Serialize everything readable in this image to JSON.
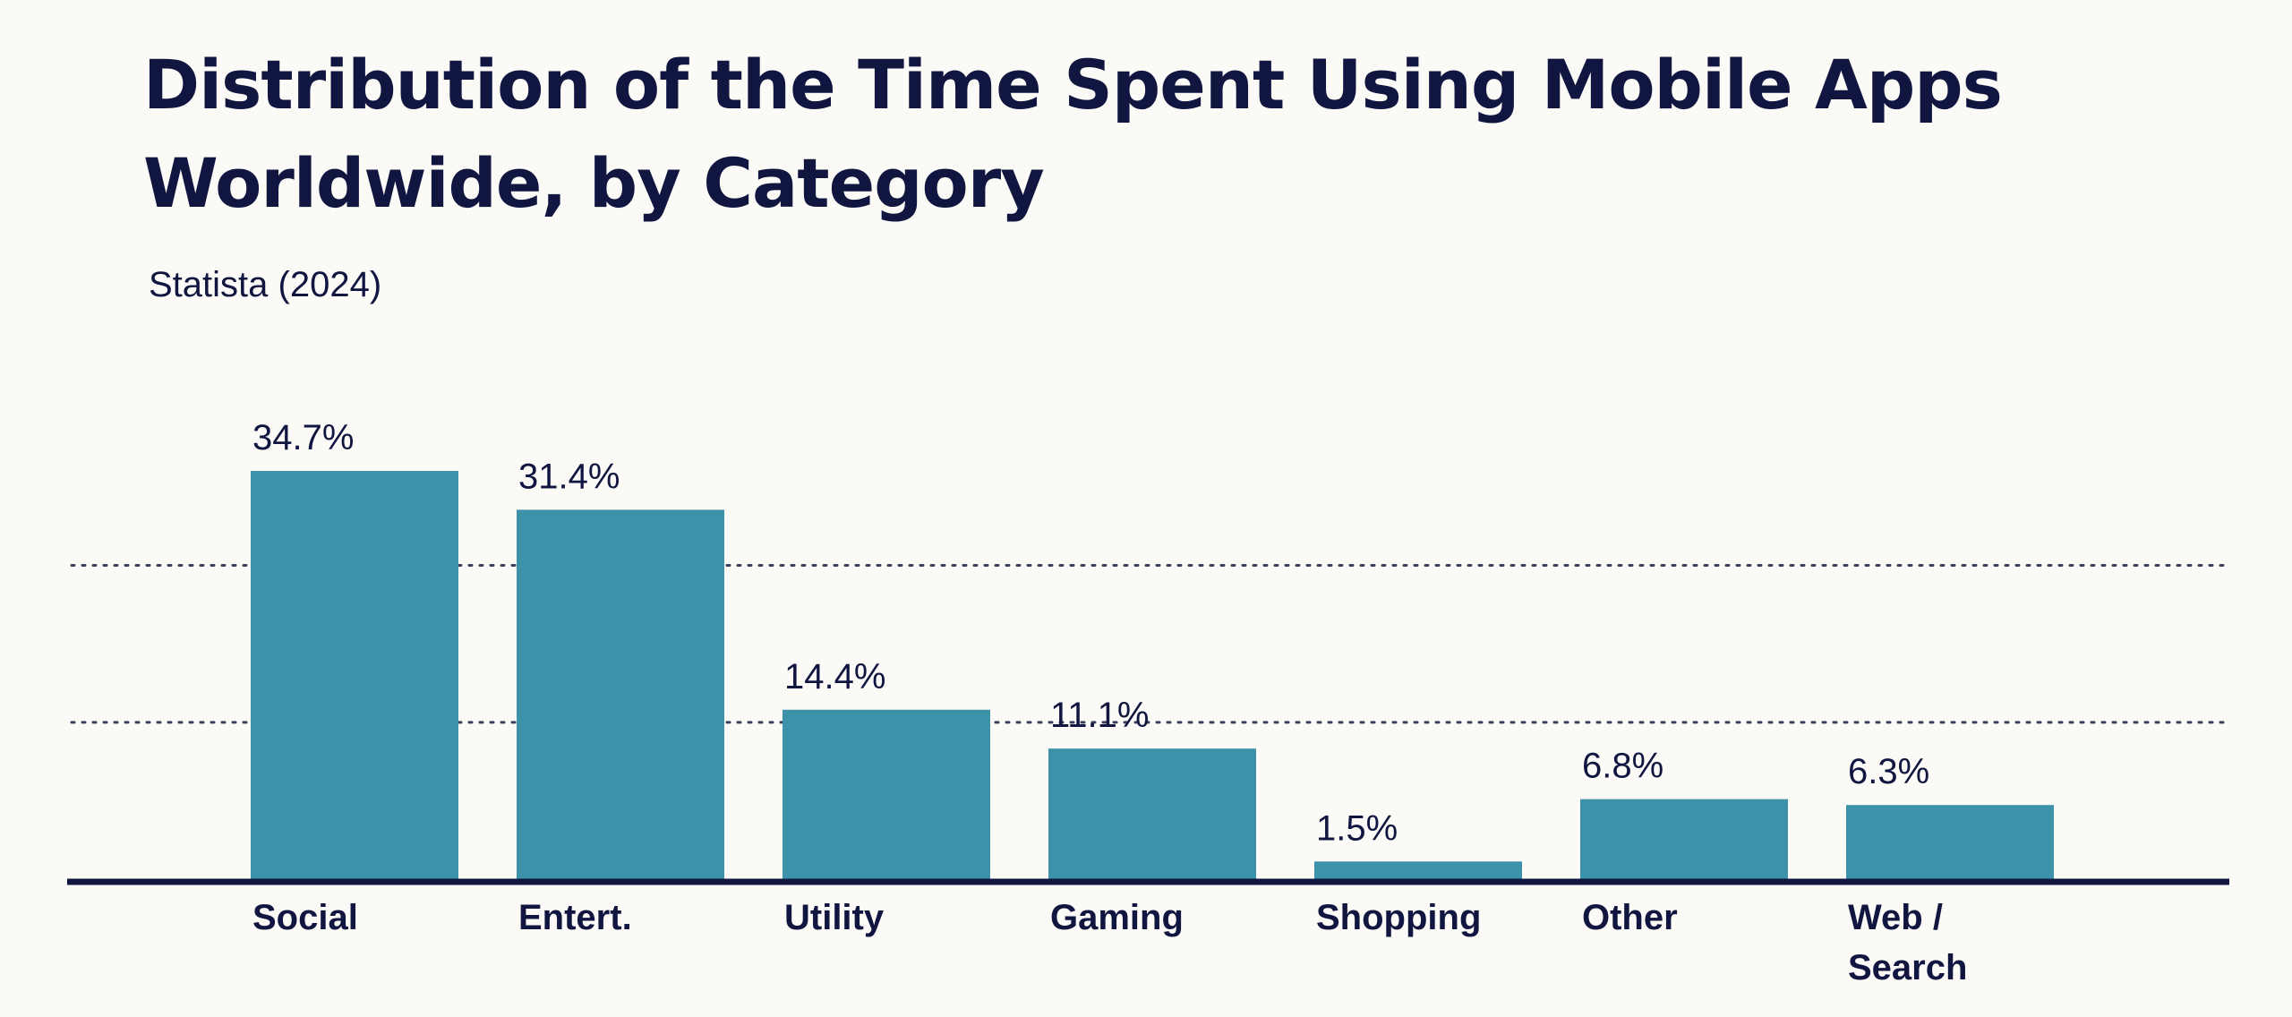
{
  "chart_data": {
    "type": "bar",
    "title": "Distribution of the Time Spent Using Mobile Apps Worldwide, by Category",
    "subtitle": "Statista (2024)",
    "categories": [
      "Social",
      "Entert.",
      "Utility",
      "Gaming",
      "Shopping",
      "Other",
      "Web / Search"
    ],
    "category_lines": [
      [
        "Social"
      ],
      [
        "Entert."
      ],
      [
        "Utility"
      ],
      [
        "Gaming"
      ],
      [
        "Shopping"
      ],
      [
        "Other"
      ],
      [
        "Web /",
        "Search"
      ]
    ],
    "values": [
      34.7,
      31.4,
      14.4,
      11.1,
      1.5,
      6.8,
      6.3
    ],
    "data_labels": [
      "34.7%",
      "31.4%",
      "14.4%",
      "11.1%",
      "1.5%",
      "6.8%",
      "6.3%"
    ],
    "xlabel": "",
    "ylabel": "",
    "ylim": [
      0,
      35
    ],
    "gridlines": [
      13.33,
      26.67
    ],
    "grid": true,
    "legend": "none",
    "colors": {
      "bar": "#3c92a8",
      "axis": "#111640",
      "text": "#111640",
      "background": "#fcfaf6"
    }
  }
}
